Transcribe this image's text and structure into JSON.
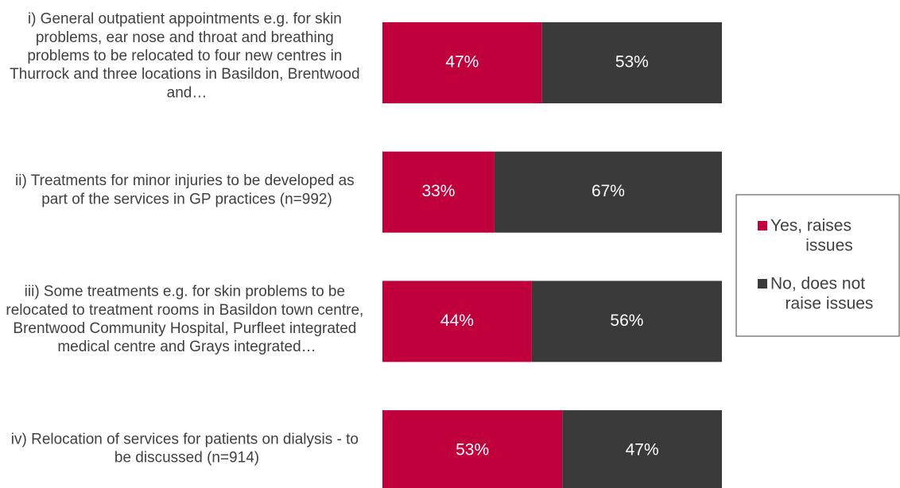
{
  "chart_data": {
    "type": "stacked-bar-horizontal",
    "categories": [
      "i) General outpatient appointments e.g. for skin problems, ear nose and throat and breathing problems to be relocated to four new centres in Thurrock and three locations in Basildon, Brentwood and…",
      "ii) Treatments for minor injuries to be developed as part of the services in GP practices (n=992)",
      "iii) Some treatments e.g. for skin problems to be relocated to treatment rooms in Basildon town centre, Brentwood Community Hospital, Purfleet integrated medical centre and Grays integrated…",
      "iv) Relocation of services for patients on dialysis - to be discussed (n=914)"
    ],
    "series": [
      {
        "name": "Yes, raises issues",
        "color": "#c0003c",
        "values": [
          47,
          33,
          44,
          53
        ],
        "value_labels": [
          "47%",
          "33%",
          "44%",
          "53%"
        ]
      },
      {
        "name": "No, does not raise issues",
        "color": "#3a3a3a",
        "values": [
          53,
          67,
          56,
          47
        ],
        "value_labels": [
          "53%",
          "67%",
          "56%",
          "47%"
        ]
      }
    ],
    "xlim": [
      0,
      100
    ],
    "legend": "right"
  }
}
